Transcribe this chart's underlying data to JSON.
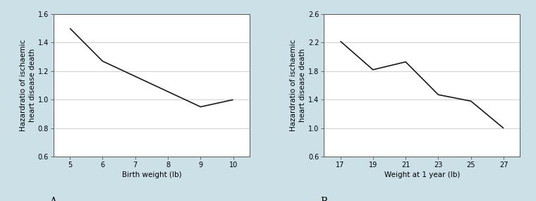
{
  "panel_A": {
    "x": [
      5,
      6,
      9,
      10
    ],
    "y": [
      1.5,
      1.27,
      0.95,
      1.0
    ],
    "xlabel": "Birth weight (lb)",
    "ylabel": "Hazardratio of ischaemic\nheart disease death",
    "xlim": [
      4.5,
      10.5
    ],
    "ylim": [
      0.6,
      1.6
    ],
    "xticks": [
      5,
      6,
      7,
      8,
      9,
      10
    ],
    "yticks": [
      0.6,
      0.8,
      1.0,
      1.2,
      1.4,
      1.6
    ],
    "label": "A"
  },
  "panel_B": {
    "x": [
      17,
      19,
      21,
      23,
      25,
      27
    ],
    "y": [
      2.22,
      1.82,
      1.93,
      1.47,
      1.38,
      1.0
    ],
    "xlabel": "Weight at 1 year (lb)",
    "ylabel": "Hazardratio of ischaemic\nheart disease death",
    "xlim": [
      16,
      28
    ],
    "ylim": [
      0.6,
      2.6
    ],
    "xticks": [
      17,
      19,
      21,
      23,
      25,
      27
    ],
    "yticks": [
      0.6,
      1.0,
      1.4,
      1.8,
      2.2,
      2.6
    ],
    "label": "B"
  },
  "line_color": "#1a1a1a",
  "line_width": 1.2,
  "bg_color": "#cce0e8",
  "plot_bg_color": "#ffffff",
  "label_fontsize": 7.5,
  "tick_fontsize": 7,
  "grid_color": "#c8c8c8",
  "grid_linewidth": 0.6,
  "spine_color": "#555555",
  "spine_linewidth": 0.7
}
